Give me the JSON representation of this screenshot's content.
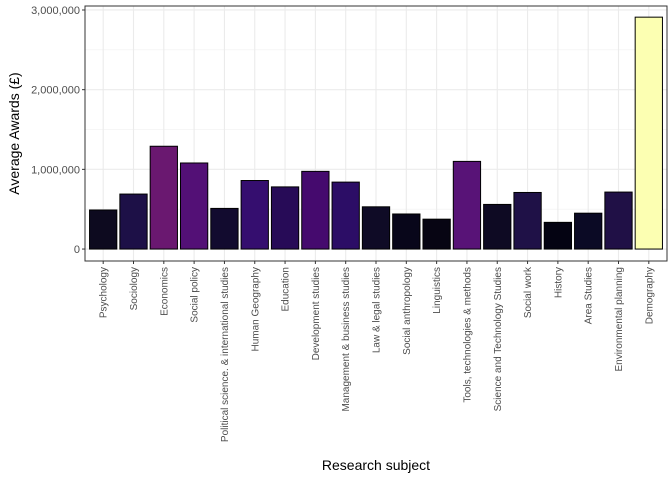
{
  "chart_data": {
    "type": "bar",
    "title": "",
    "xlabel": "Research subject",
    "ylabel": "Average Awards (£)",
    "ylim": [
      0,
      3000000
    ],
    "y_ticks": [
      0,
      1000000,
      2000000,
      3000000
    ],
    "y_tick_labels": [
      "0",
      "1,000,000",
      "2,000,000",
      "3,000,000"
    ],
    "grid": true,
    "legend": "none",
    "categories": [
      "Psychology",
      "Sociology",
      "Economics",
      "Social policy",
      "Political science. & international studies",
      "Human Geography",
      "Education",
      "Development studies",
      "Management & business studies",
      "Law & legal studies",
      "Social anthropology",
      "Linguistics",
      "Tools, technologies & methods",
      "Science and Technology Studies",
      "Social work",
      "History",
      "Area Studies",
      "Environmental planning",
      "Demography"
    ],
    "values": [
      490000,
      690000,
      1290000,
      1080000,
      510000,
      860000,
      780000,
      975000,
      840000,
      530000,
      440000,
      375000,
      1100000,
      560000,
      710000,
      335000,
      450000,
      715000,
      2910000
    ],
    "colors": [
      "#0d0a1f",
      "#1d1047",
      "#6a1870",
      "#531076",
      "#120b2f",
      "#350e6f",
      "#270b57",
      "#450a6e",
      "#2c0d66",
      "#0f0b26",
      "#08061a",
      "#070513",
      "#581377",
      "#0e0a23",
      "#1f1147",
      "#040312",
      "#0b0a25",
      "#201046",
      "#fcffb2"
    ]
  }
}
